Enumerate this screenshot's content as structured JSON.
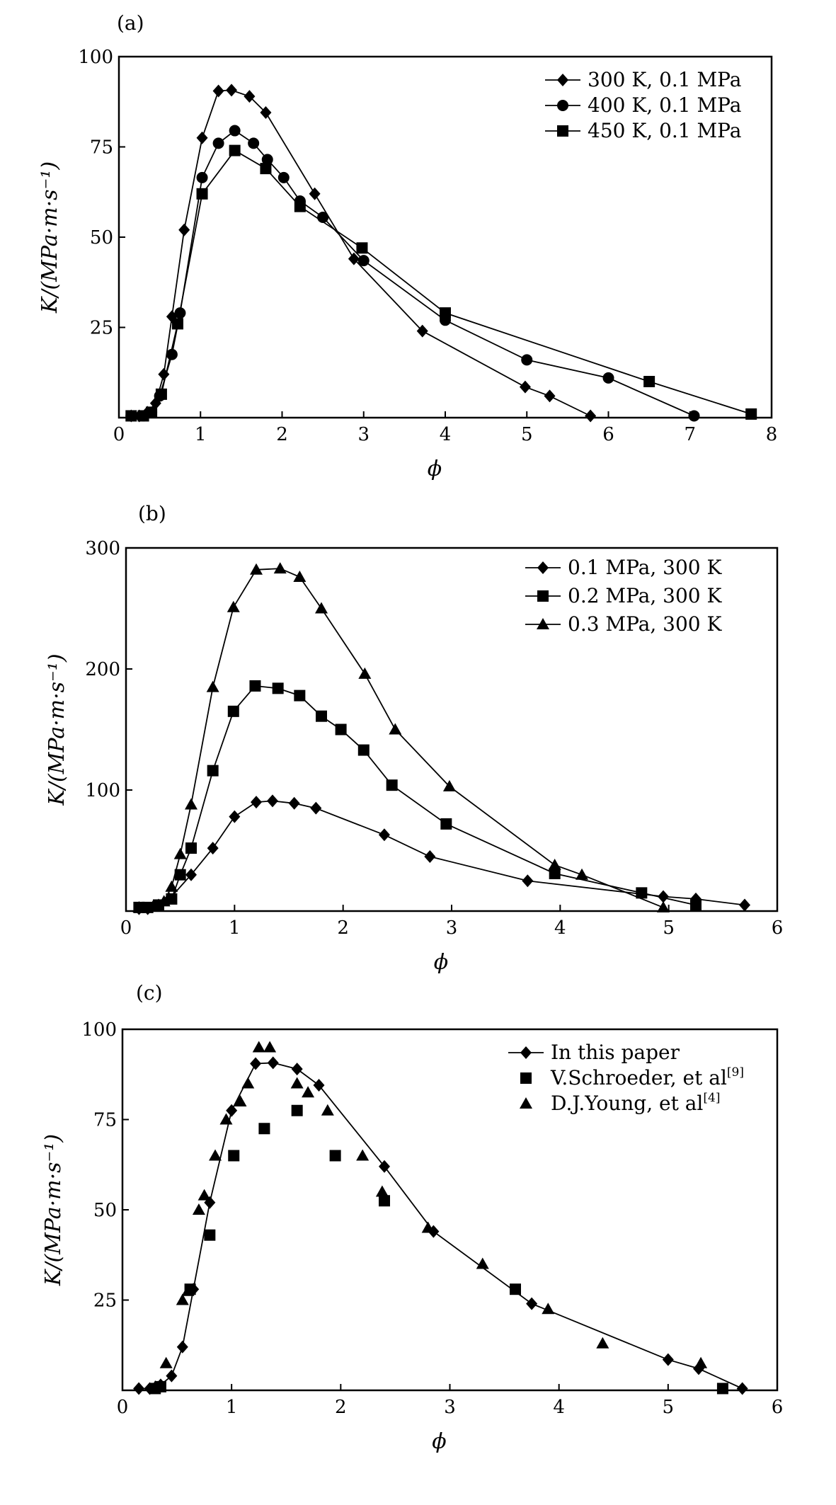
{
  "chart_data": [
    {
      "panel": "(a)",
      "type": "line",
      "xlabel": "ϕ",
      "ylabel": "K/(MPa·m·s⁻¹)",
      "xlim": [
        0,
        8
      ],
      "ylim": [
        0,
        100
      ],
      "xticks": [
        "0",
        "1",
        "2",
        "3",
        "4",
        "5",
        "6",
        "7",
        "8"
      ],
      "yticks": [
        "25",
        "50",
        "75",
        "100"
      ],
      "legend_position": "top-right",
      "series": [
        {
          "name": "300 K, 0.1 MPa",
          "marker": "diamond",
          "connected": true,
          "points": [
            [
              0.15,
              0.5
            ],
            [
              0.25,
              0.5
            ],
            [
              0.35,
              1.5
            ],
            [
              0.45,
              4
            ],
            [
              0.55,
              12
            ],
            [
              0.65,
              28
            ],
            [
              0.8,
              52
            ],
            [
              1.02,
              77.5
            ],
            [
              1.22,
              90.5
            ],
            [
              1.38,
              90.7
            ],
            [
              1.6,
              89
            ],
            [
              1.8,
              84.5
            ],
            [
              2.4,
              62
            ],
            [
              2.88,
              44
            ],
            [
              3.72,
              24
            ],
            [
              4.98,
              8.5
            ],
            [
              5.28,
              6
            ],
            [
              5.78,
              0.5
            ]
          ]
        },
        {
          "name": "400 K, 0.1 MPa",
          "marker": "circle",
          "connected": true,
          "points": [
            [
              0.15,
              0.5
            ],
            [
              0.3,
              0.5
            ],
            [
              0.4,
              1.5
            ],
            [
              0.5,
              6
            ],
            [
              0.65,
              17.5
            ],
            [
              0.75,
              29
            ],
            [
              1.02,
              66.5
            ],
            [
              1.22,
              76
            ],
            [
              1.42,
              79.5
            ],
            [
              1.65,
              76
            ],
            [
              1.82,
              71.5
            ],
            [
              2.02,
              66.5
            ],
            [
              2.22,
              60
            ],
            [
              2.5,
              55.5
            ],
            [
              3.0,
              43.5
            ],
            [
              4.0,
              27
            ],
            [
              5.0,
              16
            ],
            [
              6.0,
              11
            ],
            [
              7.05,
              0.5
            ]
          ]
        },
        {
          "name": "450 K, 0.1 MPa",
          "marker": "square",
          "connected": true,
          "points": [
            [
              0.15,
              0.5
            ],
            [
              0.3,
              0.5
            ],
            [
              0.4,
              1.5
            ],
            [
              0.52,
              6.5
            ],
            [
              0.72,
              26
            ],
            [
              1.02,
              62
            ],
            [
              1.42,
              74
            ],
            [
              1.8,
              69
            ],
            [
              2.22,
              58.5
            ],
            [
              2.98,
              47
            ],
            [
              4.0,
              29
            ],
            [
              6.5,
              10
            ],
            [
              7.75,
              1
            ]
          ]
        }
      ]
    },
    {
      "panel": "(b)",
      "type": "line",
      "xlabel": "ϕ",
      "ylabel": "K/(MPa·m·s⁻¹)",
      "xlim": [
        0,
        6
      ],
      "ylim": [
        0,
        300
      ],
      "xticks": [
        "0",
        "1",
        "2",
        "3",
        "4",
        "5",
        "6"
      ],
      "yticks": [
        "100",
        "200",
        "300"
      ],
      "legend_position": "top-right",
      "series": [
        {
          "name": "0.1 MPa, 300 K",
          "marker": "diamond",
          "connected": true,
          "points": [
            [
              0.12,
              2
            ],
            [
              0.2,
              2
            ],
            [
              0.3,
              5
            ],
            [
              0.4,
              10
            ],
            [
              0.6,
              30
            ],
            [
              0.8,
              52
            ],
            [
              1.0,
              78
            ],
            [
              1.2,
              90
            ],
            [
              1.35,
              91
            ],
            [
              1.55,
              89
            ],
            [
              1.75,
              85
            ],
            [
              2.38,
              63
            ],
            [
              2.8,
              45
            ],
            [
              3.7,
              25
            ],
            [
              4.95,
              12
            ],
            [
              5.25,
              10
            ],
            [
              5.7,
              5
            ]
          ]
        },
        {
          "name": "0.2 MPa, 300 K",
          "marker": "square",
          "connected": true,
          "points": [
            [
              0.12,
              3
            ],
            [
              0.2,
              3
            ],
            [
              0.3,
              5
            ],
            [
              0.42,
              10
            ],
            [
              0.5,
              30
            ],
            [
              0.6,
              52
            ],
            [
              0.8,
              116
            ],
            [
              0.99,
              165
            ],
            [
              1.19,
              186
            ],
            [
              1.4,
              184
            ],
            [
              1.6,
              178
            ],
            [
              1.8,
              161
            ],
            [
              1.98,
              150
            ],
            [
              2.19,
              133
            ],
            [
              2.45,
              104
            ],
            [
              2.95,
              72
            ],
            [
              3.95,
              31
            ],
            [
              4.75,
              15
            ],
            [
              5.25,
              5
            ]
          ]
        },
        {
          "name": "0.3 MPa, 300 K",
          "marker": "triangle",
          "connected": true,
          "points": [
            [
              0.12,
              3
            ],
            [
              0.25,
              4
            ],
            [
              0.35,
              8
            ],
            [
              0.42,
              20
            ],
            [
              0.5,
              47
            ],
            [
              0.6,
              88
            ],
            [
              0.8,
              185
            ],
            [
              0.99,
              251
            ],
            [
              1.2,
              282
            ],
            [
              1.42,
              283
            ],
            [
              1.6,
              276
            ],
            [
              1.8,
              250
            ],
            [
              2.2,
              196
            ],
            [
              2.48,
              150
            ],
            [
              2.98,
              103
            ],
            [
              3.95,
              38
            ],
            [
              4.2,
              30
            ],
            [
              4.95,
              3
            ]
          ]
        }
      ]
    },
    {
      "panel": "(c)",
      "type": "scatter",
      "xlabel": "ϕ",
      "ylabel": "K/(MPa·m·s⁻¹)",
      "xlim": [
        0,
        6
      ],
      "ylim": [
        0,
        100
      ],
      "xticks": [
        "0",
        "1",
        "2",
        "3",
        "4",
        "5",
        "6"
      ],
      "yticks": [
        "25",
        "50",
        "75",
        "100"
      ],
      "legend_position": "top-right",
      "series": [
        {
          "name": "In this paper",
          "marker": "diamond",
          "connected": true,
          "points": [
            [
              0.15,
              0.5
            ],
            [
              0.25,
              0.5
            ],
            [
              0.35,
              1.5
            ],
            [
              0.45,
              4
            ],
            [
              0.55,
              12
            ],
            [
              0.65,
              28
            ],
            [
              0.8,
              52
            ],
            [
              1.0,
              77.5
            ],
            [
              1.22,
              90.5
            ],
            [
              1.38,
              90.7
            ],
            [
              1.6,
              89
            ],
            [
              1.8,
              84.5
            ],
            [
              2.4,
              62
            ],
            [
              2.85,
              44
            ],
            [
              3.75,
              24
            ],
            [
              5.0,
              8.5
            ],
            [
              5.28,
              6
            ],
            [
              5.68,
              0.5
            ]
          ]
        },
        {
          "name": "V.Schroeder, et al",
          "ref": "[9]",
          "marker": "square",
          "connected": false,
          "points": [
            [
              0.3,
              0.5
            ],
            [
              0.35,
              1
            ],
            [
              0.62,
              28
            ],
            [
              0.8,
              43
            ],
            [
              1.02,
              65
            ],
            [
              1.3,
              72.5
            ],
            [
              1.6,
              77.5
            ],
            [
              1.95,
              65
            ],
            [
              2.4,
              52.5
            ],
            [
              3.6,
              28
            ],
            [
              5.5,
              0.5
            ]
          ]
        },
        {
          "name": "D.J.Young, et al",
          "ref": "[4]",
          "marker": "triangle",
          "connected": false,
          "points": [
            [
              0.3,
              1
            ],
            [
              0.4,
              7.5
            ],
            [
              0.55,
              25
            ],
            [
              0.6,
              27.5
            ],
            [
              0.7,
              50
            ],
            [
              0.75,
              54
            ],
            [
              0.85,
              65
            ],
            [
              0.95,
              75
            ],
            [
              1.08,
              80
            ],
            [
              1.15,
              85
            ],
            [
              1.25,
              95
            ],
            [
              1.35,
              95
            ],
            [
              1.6,
              85
            ],
            [
              1.7,
              82.5
            ],
            [
              1.88,
              77.5
            ],
            [
              2.2,
              65
            ],
            [
              2.38,
              55
            ],
            [
              2.8,
              45
            ],
            [
              3.3,
              35
            ],
            [
              3.9,
              22.5
            ],
            [
              4.4,
              13
            ],
            [
              5.3,
              7.5
            ]
          ]
        }
      ]
    }
  ]
}
